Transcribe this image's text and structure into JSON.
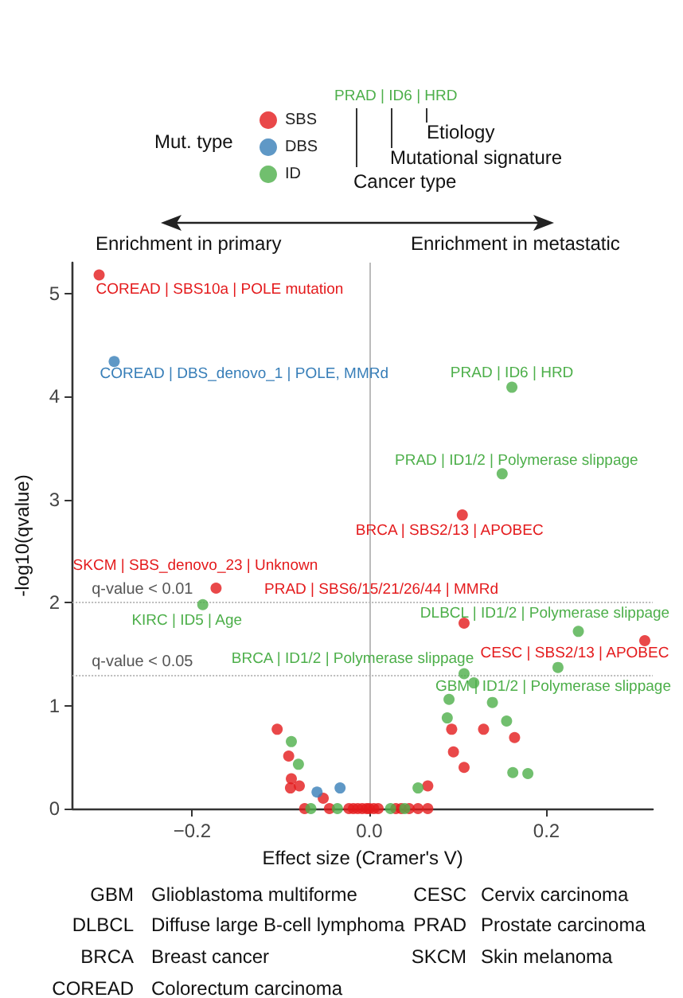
{
  "chart_data": {
    "type": "scatter",
    "xlabel": "Effect size (Cramer's V)",
    "ylabel": "-log10(qvalue)",
    "legend_title": "Mut. type",
    "legend": "top",
    "marker": "circle",
    "grid": false,
    "xlim": [
      -0.335,
      0.32
    ],
    "xticks": [
      {
        "value": -0.2,
        "label": "−0.2"
      },
      {
        "value": 0,
        "label": "0.0"
      },
      {
        "value": 0.2,
        "label": "0.2"
      }
    ],
    "ylim": [
      0,
      5.3
    ],
    "yticks": [
      0,
      1,
      2,
      3,
      4,
      5
    ],
    "series": [
      {
        "name": "SBS",
        "color": "#e41a1c",
        "x": [
          -0.305,
          -0.173,
          0.105,
          0.107,
          0.311,
          -0.104,
          -0.091,
          -0.088,
          -0.089,
          -0.079,
          -0.052,
          0.093,
          0.129,
          0.164,
          0.095,
          0.107,
          0.066,
          -0.073,
          -0.045,
          -0.023,
          -0.018,
          -0.013,
          -0.008,
          -0.003,
          0.0,
          0.005,
          0.01,
          0.03,
          0.036,
          0.045,
          0.055,
          0.066
        ],
        "values": [
          5.18,
          2.14,
          2.85,
          1.8,
          1.63,
          0.77,
          0.51,
          0.29,
          0.2,
          0.22,
          0.1,
          0.77,
          0.77,
          0.69,
          0.55,
          0.4,
          0.22,
          0,
          0,
          0,
          0,
          0,
          0,
          0,
          0,
          0,
          0,
          0,
          0,
          0,
          0,
          0
        ]
      },
      {
        "name": "DBS",
        "color": "#377eb8",
        "x": [
          -0.288,
          -0.059,
          -0.033
        ],
        "values": [
          4.34,
          0.16,
          0.2
        ]
      },
      {
        "name": "ID",
        "color": "#4daf4a",
        "x": [
          0.161,
          0.15,
          -0.188,
          0.236,
          0.213,
          0.107,
          0.118,
          0.09,
          0.139,
          0.088,
          0.155,
          0.162,
          0.179,
          0.055,
          -0.088,
          -0.08,
          -0.066,
          -0.036,
          0.024,
          0.04
        ],
        "values": [
          4.09,
          3.25,
          1.98,
          1.72,
          1.37,
          1.31,
          1.22,
          1.06,
          1.03,
          0.88,
          0.85,
          0.35,
          0.34,
          0.2,
          0.65,
          0.43,
          0,
          0,
          0,
          0
        ]
      }
    ],
    "ref_lines": [
      {
        "axis": "y",
        "value": 2,
        "label": "q-value < 0.01",
        "color": "#bbbbbb",
        "line_style": "dotted"
      },
      {
        "axis": "y",
        "value": 1.301,
        "label": "q-value < 0.05",
        "color": "#bbbbbb",
        "line_style": "dotted"
      },
      {
        "axis": "x",
        "value": 0,
        "color": "#bbbbbb",
        "line_style": "solid"
      }
    ],
    "annotations": [
      {
        "text": "COREAD | SBS10a | POLE mutation",
        "x": -0.305,
        "y": 5.18
      },
      {
        "text": "COREAD | DBS_denovo_1 | POLE, MMRd",
        "x": -0.288,
        "y": 4.34
      },
      {
        "text": "PRAD | ID6 | HRD",
        "x": 0.161,
        "y": 4.09
      },
      {
        "text": "PRAD | ID1/2 | Polymerase slippage",
        "x": 0.15,
        "y": 3.25
      },
      {
        "text": "BRCA | SBS2/13 | APOBEC",
        "x": 0.105,
        "y": 2.85
      },
      {
        "text": "SKCM | SBS_denovo_23 | Unknown",
        "x": -0.173,
        "y": 2.14
      },
      {
        "text": "KIRC | ID5 | Age",
        "x": -0.188,
        "y": 1.98
      },
      {
        "text": "PRAD | SBS6/15/21/26/44 | MMRd",
        "x": 0.107,
        "y": 1.8
      },
      {
        "text": "DLBCL | ID1/2 | Polymerase slippage",
        "x": 0.236,
        "y": 1.72
      },
      {
        "text": "CESC | SBS2/13 | APOBEC",
        "x": 0.311,
        "y": 1.63
      },
      {
        "text": "GBM | ID1/2 | Polymerase slippage",
        "x": 0.213,
        "y": 1.37
      },
      {
        "text": "BRCA | ID1/2 | Polymerase slippage",
        "x": 0.107,
        "y": 1.31
      },
      "PRAD | ID6 | HRD",
      "Etiology",
      "Mutational signature",
      "Cancer type",
      "Enrichment in primary",
      "Enrichment in metastatic",
      "GBM",
      "Glioblastoma multiforme",
      "DLBCL",
      "Diffuse large B-cell lymphoma",
      "BRCA",
      "Breast cancer",
      "COREAD",
      "Colorectum carcinoma",
      "CESC",
      "Cervix carcinoma",
      "PRAD",
      "Prostate carcinoma",
      "SKCM",
      "Skin melanoma"
    ]
  }
}
